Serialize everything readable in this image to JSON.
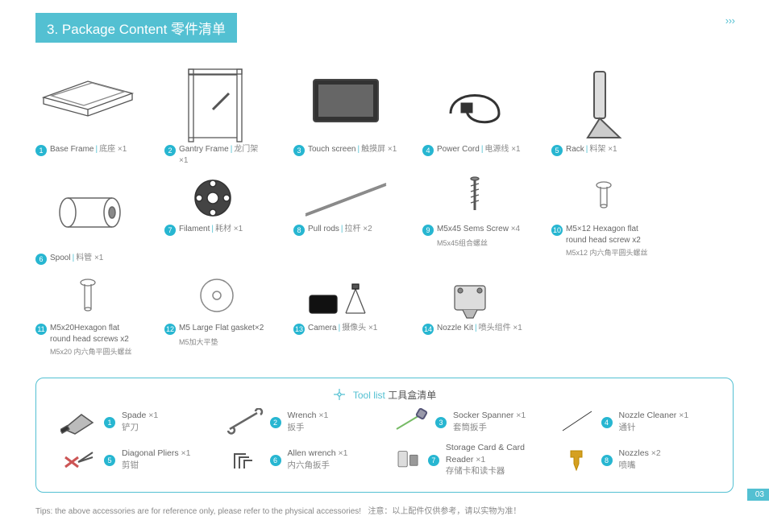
{
  "header": "3. Package Content 零件清单",
  "items": [
    {
      "n": "1",
      "en": "Base Frame",
      "cn": "底座",
      "qty": "×1",
      "svg": "baseframe"
    },
    {
      "n": "2",
      "en": "Gantry Frame",
      "cn": "龙门架",
      "qty": "×1",
      "svg": "gantry"
    },
    {
      "n": "3",
      "en": "Touch screen",
      "cn": "触摸屏",
      "qty": "×1",
      "svg": "screen"
    },
    {
      "n": "4",
      "en": "Power Cord",
      "cn": "电源线",
      "qty": "×1",
      "svg": "cord"
    },
    {
      "n": "5",
      "en": "Rack",
      "cn": "料架",
      "qty": "×1",
      "svg": "rack"
    },
    {
      "n": "6",
      "en": "Spool",
      "cn": "料管",
      "qty": "×1",
      "svg": "spool"
    },
    {
      "n": "7",
      "en": "Filament",
      "cn": "耗材",
      "qty": "×1",
      "svg": "filament",
      "short": true
    },
    {
      "n": "8",
      "en": "Pull rods",
      "cn": "拉杆",
      "qty": "×2",
      "svg": "rods",
      "short": true
    },
    {
      "n": "9",
      "en": "M5x45 Sems Screw",
      "qty": "×4",
      "sub": "M5x45组合螺丝",
      "svg": "screw1",
      "short": true
    },
    {
      "n": "10",
      "en": "M5×12 Hexagon flat round head screw x2",
      "sub": "M5x12 内六角平圆头螺丝",
      "svg": "screw2",
      "short": true
    },
    {
      "n": "11",
      "en": "M5x20Hexagon flat round head screws x2",
      "sub": "M5x20 内六角平圆头螺丝",
      "svg": "screw3",
      "short": true
    },
    {
      "n": "12",
      "en": "M5 Large Flat gasket×2",
      "sub": "M5加大平垫",
      "svg": "gasket",
      "short": true
    },
    {
      "n": "13",
      "en": "Camera",
      "cn": "摄像头",
      "qty": "×1",
      "svg": "camera",
      "short": true
    },
    {
      "n": "14",
      "en": "Nozzle Kit",
      "cn": "喷头组件",
      "qty": "×1",
      "svg": "nozzlekit",
      "short": true
    }
  ],
  "toolTitleEn": "Tool list",
  "toolTitleCn": "工具盒清单",
  "tools": [
    [
      {
        "n": "1",
        "en": "Spade",
        "cn": "铲刀",
        "qty": "×1",
        "svg": "spade"
      },
      {
        "n": "2",
        "en": "Wrench",
        "cn": "扳手",
        "qty": "×1",
        "svg": "wrench"
      },
      {
        "n": "3",
        "en": "Socker Spanner",
        "cn": "套筒扳手",
        "qty": "×1",
        "svg": "socket"
      },
      {
        "n": "4",
        "en": "Nozzle Cleaner",
        "cn": "通针",
        "qty": "×1",
        "svg": "needle"
      }
    ],
    [
      {
        "n": "5",
        "en": "Diagonal Pliers",
        "cn": "剪钳",
        "qty": "×1",
        "svg": "pliers"
      },
      {
        "n": "6",
        "en": "Allen wrench",
        "cn": "内六角扳手",
        "qty": "×1",
        "svg": "allen"
      },
      {
        "n": "7",
        "en": "Storage Card & Card Reader",
        "cn": "存储卡和读卡器",
        "qty": "×1",
        "svg": "card"
      },
      {
        "n": "8",
        "en": "Nozzles",
        "cn": "喷嘴",
        "qty": "×2",
        "svg": "nozzle"
      }
    ]
  ],
  "noteEn": "Tips: the above accessories are for reference only, please refer to the physical accessories!",
  "noteCn": "注意：以上配件仅供参考，请以实物为准！",
  "page": "03"
}
